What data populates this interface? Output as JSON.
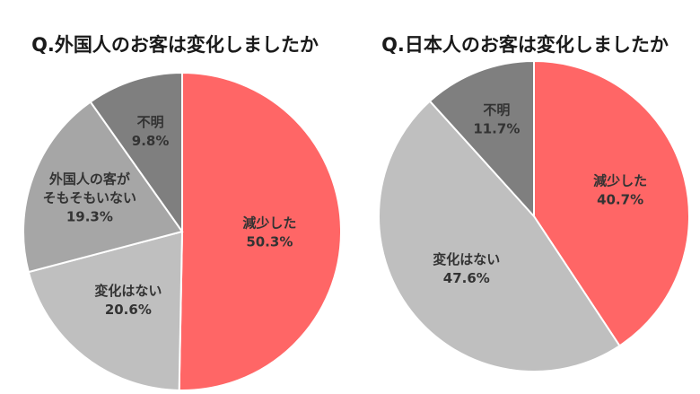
{
  "colors": {
    "減少した": "#ff6666",
    "変化はない": "#bfbfbf",
    "外国人の客がそもそもいない": "#a6a6a6",
    "不明": "#7f7f7f"
  },
  "chart_data": [
    {
      "type": "pie",
      "title": "Q.外国人のお客は変化しましたか",
      "slices": [
        {
          "label_lines": [
            "減少した"
          ],
          "value": 50.3,
          "value_label": "50.3%",
          "color_key": "減少した"
        },
        {
          "label_lines": [
            "変化はない"
          ],
          "value": 20.6,
          "value_label": "20.6%",
          "color_key": "変化はない"
        },
        {
          "label_lines": [
            "外国人の客が",
            "そもそもいない"
          ],
          "value": 19.3,
          "value_label": "19.3%",
          "color_key": "外国人の客がそもそもいない"
        },
        {
          "label_lines": [
            "不明"
          ],
          "value": 9.8,
          "value_label": "9.8%",
          "color_key": "不明"
        }
      ]
    },
    {
      "type": "pie",
      "title": "Q.日本人のお客は変化しましたか",
      "slices": [
        {
          "label_lines": [
            "減少した"
          ],
          "value": 40.7,
          "value_label": "40.7%",
          "color_key": "減少した"
        },
        {
          "label_lines": [
            "変化はない"
          ],
          "value": 47.6,
          "value_label": "47.6%",
          "color_key": "変化はない"
        },
        {
          "label_lines": [
            "不明"
          ],
          "value": 11.7,
          "value_label": "11.7%",
          "color_key": "不明"
        }
      ]
    }
  ]
}
